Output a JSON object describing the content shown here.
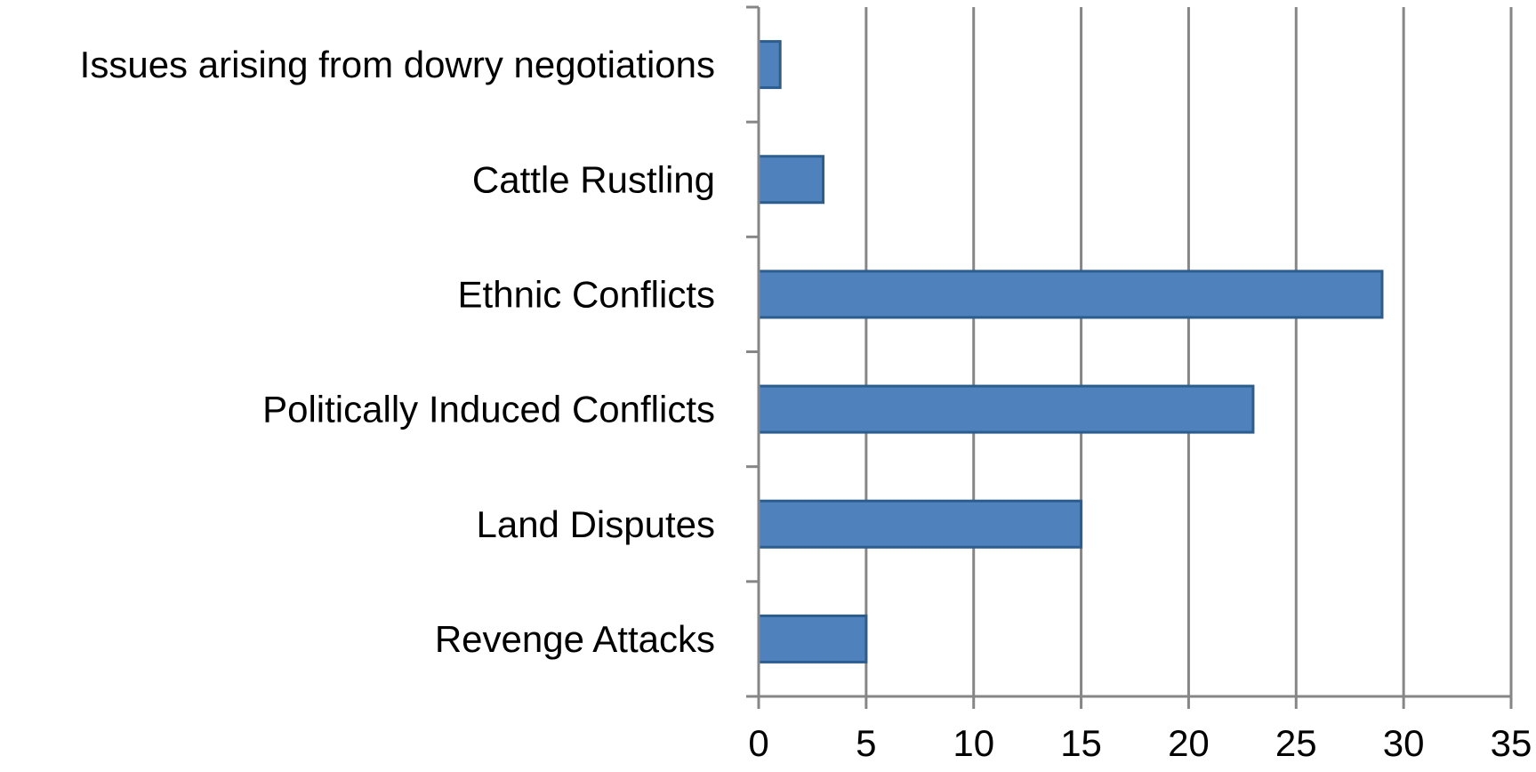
{
  "chart_data": {
    "type": "bar",
    "orientation": "horizontal",
    "categories": [
      "Issues arising from dowry negotiations",
      "Cattle Rustling",
      "Ethnic Conflicts",
      "Politically Induced Conflicts",
      "Land Disputes",
      "Revenge Attacks"
    ],
    "values": [
      1,
      3,
      29,
      23,
      15,
      5
    ],
    "xlim": [
      0,
      35
    ],
    "xticks": [
      "0",
      "5",
      "10",
      "15",
      "20",
      "25",
      "30",
      "35"
    ],
    "title": "",
    "xlabel": "",
    "ylabel": "",
    "grid": "vertical",
    "colors": {
      "bar": "#4f81bd",
      "bar_border": "#2c5d8f",
      "grid": "#868686"
    }
  }
}
